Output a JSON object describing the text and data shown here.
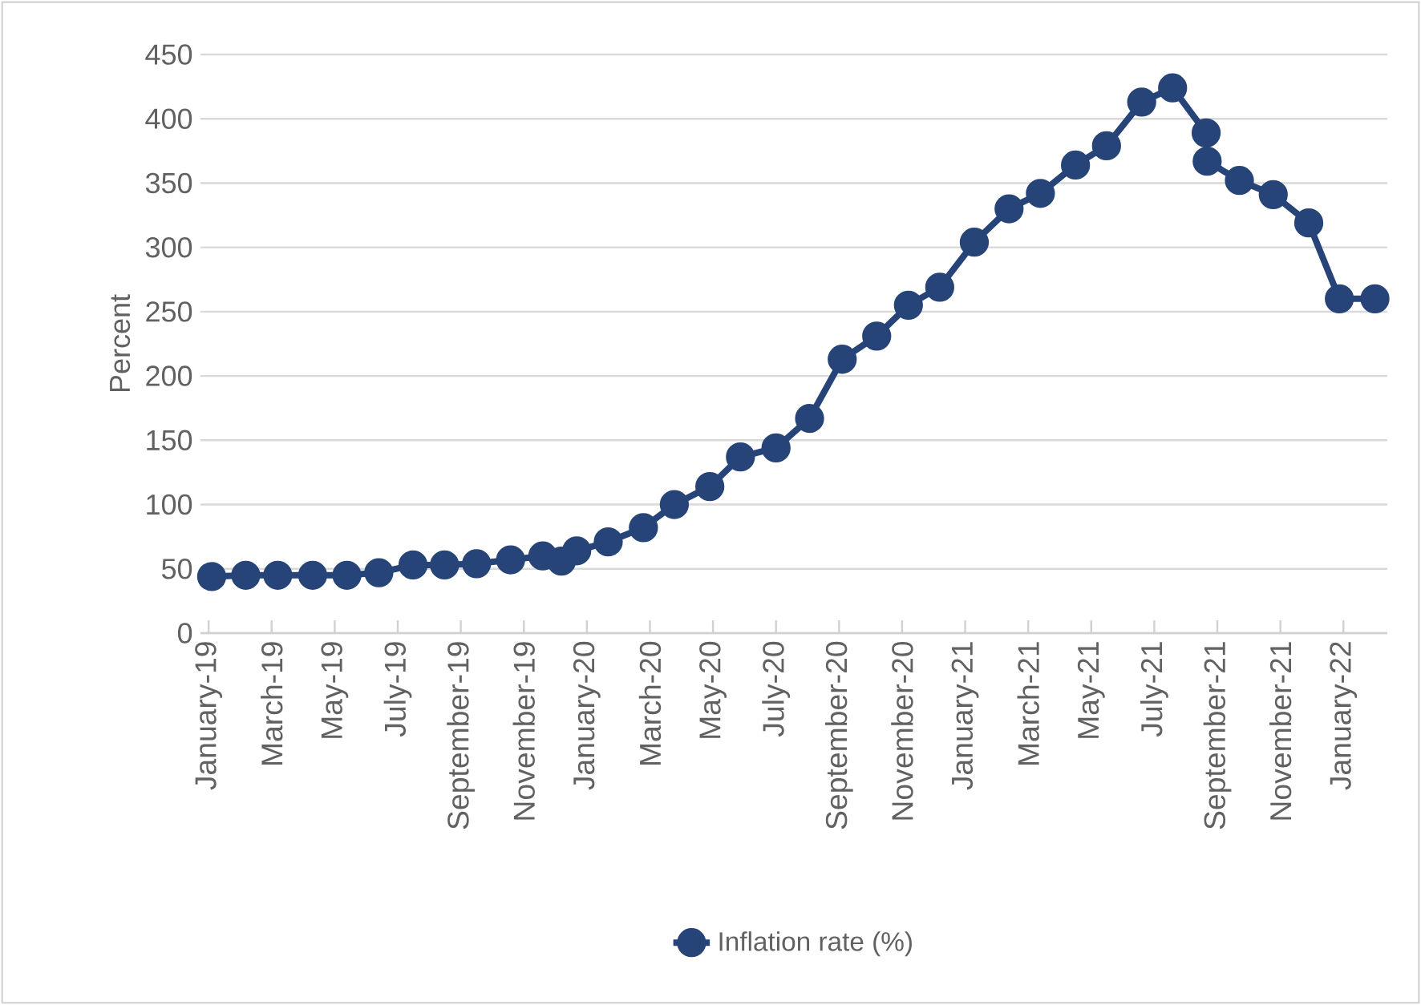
{
  "chart_data": {
    "type": "line",
    "ylabel": "Percent",
    "x": [
      "2019-01-04",
      "2019-02-06",
      "2019-03-07",
      "2019-04-10",
      "2019-05-13",
      "2019-06-13",
      "2019-07-16",
      "2019-08-16",
      "2019-09-16",
      "2019-10-19",
      "2019-11-19",
      "2019-12-07",
      "2019-12-22",
      "2020-01-22",
      "2020-02-24",
      "2020-03-25",
      "2020-04-28",
      "2020-05-28",
      "2020-07-01",
      "2020-08-03",
      "2020-09-04",
      "2020-10-07",
      "2020-11-07",
      "2020-12-07",
      "2021-01-10",
      "2021-02-12",
      "2021-03-13",
      "2021-04-16",
      "2021-05-16",
      "2021-06-19",
      "2021-07-19",
      "2021-08-21",
      "2021-08-22",
      "2021-09-22",
      "2021-10-25",
      "2021-11-28",
      "2021-12-28",
      "2022-02-01"
    ],
    "series": [
      {
        "name": "Inflation rate (%)",
        "color": "#264478",
        "values": [
          44,
          45,
          45,
          45,
          45,
          47,
          53,
          53,
          54,
          57,
          60,
          56,
          64,
          71,
          82,
          100,
          114,
          137,
          144,
          167,
          213,
          231,
          255,
          269,
          304,
          330,
          342,
          364,
          379,
          413,
          424,
          389,
          367,
          352,
          341,
          319,
          260,
          260
        ]
      }
    ],
    "xlim": [
      "2018-12-24",
      "2022-02-12"
    ],
    "xticks": [
      {
        "value": "2019-01-01",
        "label": "January-19"
      },
      {
        "value": "2019-03-01",
        "label": "March-19"
      },
      {
        "value": "2019-05-01",
        "label": "May-19"
      },
      {
        "value": "2019-07-01",
        "label": "July-19"
      },
      {
        "value": "2019-09-01",
        "label": "September-19"
      },
      {
        "value": "2019-11-01",
        "label": "November-19"
      },
      {
        "value": "2020-01-01",
        "label": "January-20"
      },
      {
        "value": "2020-03-01",
        "label": "March-20"
      },
      {
        "value": "2020-05-01",
        "label": "May-20"
      },
      {
        "value": "2020-07-01",
        "label": "July-20"
      },
      {
        "value": "2020-09-01",
        "label": "September-20"
      },
      {
        "value": "2020-11-01",
        "label": "November-20"
      },
      {
        "value": "2021-01-01",
        "label": "January-21"
      },
      {
        "value": "2021-03-01",
        "label": "March-21"
      },
      {
        "value": "2021-05-01",
        "label": "May-21"
      },
      {
        "value": "2021-07-01",
        "label": "July-21"
      },
      {
        "value": "2021-09-01",
        "label": "September-21"
      },
      {
        "value": "2021-11-01",
        "label": "November-21"
      },
      {
        "value": "2022-01-01",
        "label": "January-22"
      }
    ],
    "ylim": [
      0,
      450
    ],
    "yticks": [
      0,
      50,
      100,
      150,
      200,
      250,
      300,
      350,
      400,
      450
    ],
    "grid": "y",
    "legend": "bottom",
    "marker": "circle",
    "line_style": "solid"
  }
}
